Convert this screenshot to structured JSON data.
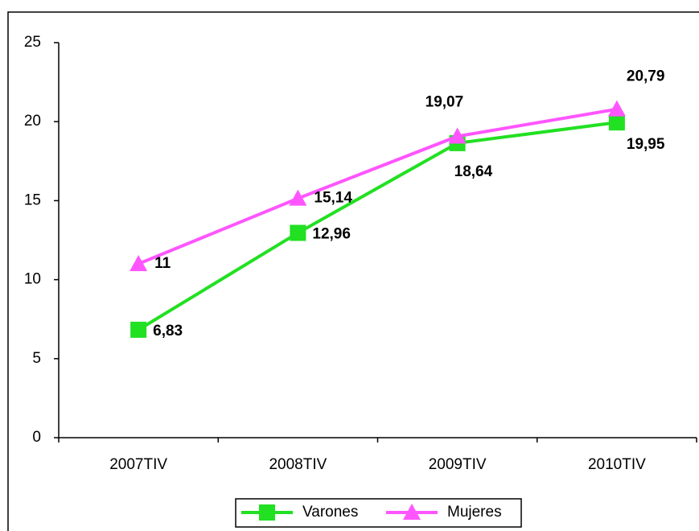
{
  "chart_data": {
    "type": "line",
    "categories": [
      "2007TIV",
      "2008TIV",
      "2009TIV",
      "2010TIV"
    ],
    "series": [
      {
        "name": "Varones",
        "color": "#22e022",
        "marker": "square",
        "values": [
          6.83,
          12.96,
          18.64,
          19.95
        ],
        "value_labels": [
          "6,83",
          "12,96",
          "18,64",
          "19,95"
        ]
      },
      {
        "name": "Mujeres",
        "color": "#ff55ff",
        "marker": "triangle",
        "values": [
          11,
          15.14,
          19.07,
          20.79
        ],
        "value_labels": [
          "11",
          "15,14",
          "19,07",
          "20,79"
        ]
      }
    ],
    "ylim": [
      0,
      25
    ],
    "yticks": [
      0,
      5,
      10,
      15,
      20,
      25
    ],
    "grid": false,
    "legend": "bottom"
  }
}
